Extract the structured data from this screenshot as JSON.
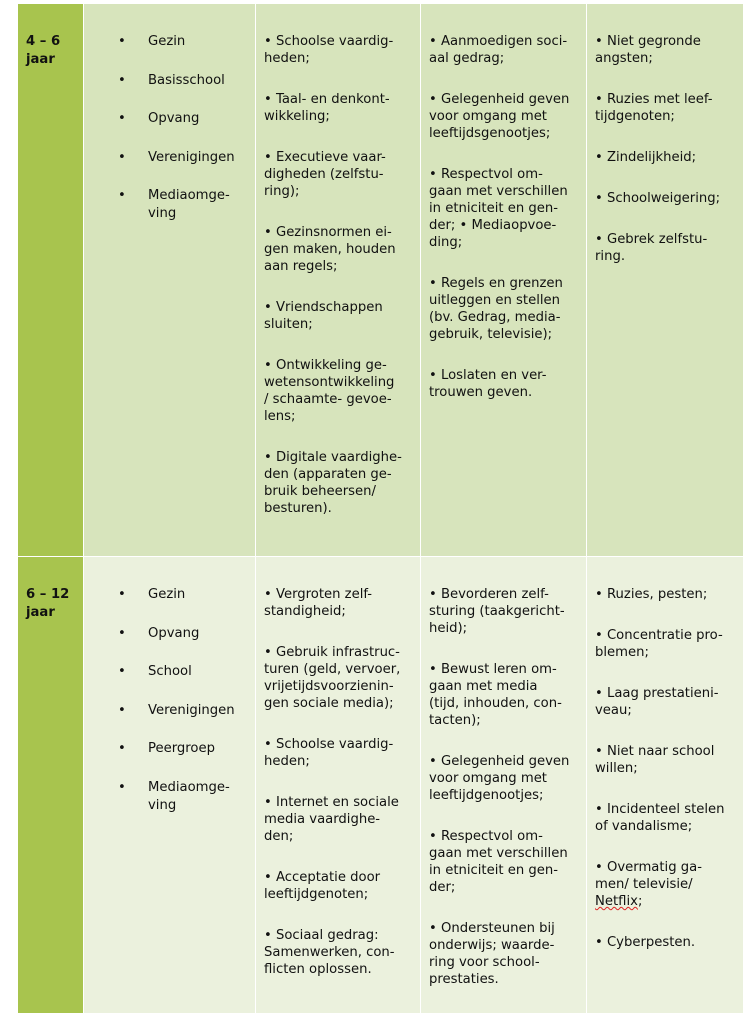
{
  "rows": [
    {
      "age": "4 – 6\njaar",
      "settings": [
        "Gezin",
        "Basisschool",
        "Opvang",
        "Verenigingen",
        "Mediaomge-\nving"
      ],
      "tasks": [
        "• Schoolse vaardig-\nheden;",
        "• Taal- en denkont-\nwikkeling;",
        "• Executieve vaar-\ndigheden (zelfstu-\nring);",
        "• Gezinsnormen ei-\ngen maken, houden\naan regels;",
        "• Vriendschappen\nsluiten;",
        "• Ontwikkeling ge-\nwetensontwikkeling\n/ schaamte- gevoe-\nlens;",
        "• Digitale vaardighe-\nden (apparaten ge-\nbruik beheersen/\nbesturen)."
      ],
      "parenting": [
        "• Aanmoedigen soci-\naal gedrag;",
        "• Gelegenheid geven\nvoor omgang met\nleeftijdsgenootjes;",
        "• Respectvol om-\ngaan met verschillen\nin etniciteit en gen-\nder; • Mediaopvoe-\nding;",
        "• Regels en grenzen\nuitleggen en stellen\n(bv. Gedrag, media-\ngebruik, televisie);",
        "• Loslaten en ver-\ntrouwen geven."
      ],
      "problems": [
        "• Niet gegronde\nangsten;",
        "• Ruzies met leef-\ntijdgenoten;",
        "• Zindelijkheid;",
        "• Schoolweigering;",
        "• Gebrek zelfstu-\nring."
      ]
    },
    {
      "age": "6 – 12\njaar",
      "settings": [
        "Gezin",
        "Opvang",
        "School",
        "Verenigingen",
        "Peergroep",
        "Mediaomge-\nving"
      ],
      "tasks": [
        "• Vergroten zelf-\nstandigheid;",
        "• Gebruik infrastruc-\nturen (geld, vervoer,\nvrijetijdsvoorzienin-\ngen sociale media);",
        "• Schoolse vaardig-\nheden;",
        "• Internet en sociale\nmedia vaardighe-\nden;",
        "• Acceptatie door\nleeftijdgenoten;",
        "• Sociaal gedrag:\nSamenwerken, con-\nflicten oplossen."
      ],
      "parenting": [
        "• Bevorderen zelf-\nsturing (taakgericht-\nheid);",
        "• Bewust leren om-\ngaan met media\n(tijd, inhouden, con-\ntacten);",
        "• Gelegenheid geven\nvoor omgang met\nleeftijdgenootjes;",
        "• Respectvol om-\ngaan met verschillen\nin etniciteit en gen-\nder;",
        "• Ondersteunen bij\nonderwijs; waarde-\nring voor school-\nprestaties."
      ],
      "problems": [
        "• Ruzies, pesten;",
        "• Concentratie pro-\nblemen;",
        "• Laag prestatieni-\nveau;",
        "• Niet naar school\nwillen;",
        "• Incidenteel stelen\nof vandalisme;",
        "• Overmatig ga-\nmen/ televisie/\nNetflix;",
        "• Cyberpesten."
      ]
    }
  ],
  "colors": {
    "age_column": "#a8c44e",
    "row1": "#d7e4bc",
    "row2": "#ebf1dd"
  }
}
